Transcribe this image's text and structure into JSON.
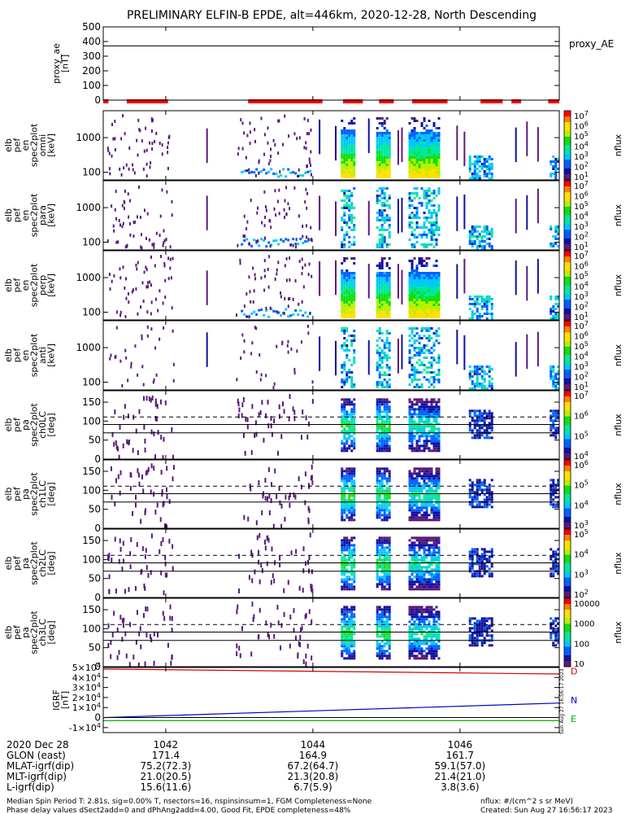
{
  "title": "PRELIMINARY ELFIN-B EPDE, alt=446km, 2020-12-28, North Descending",
  "colors": {
    "background": "#ffffff",
    "axis": "#000000",
    "flag_bar": "#ee0000",
    "grf_d": "#d40000",
    "grf_n": "#0000cc",
    "grf_e": "#00aa00",
    "colormap": [
      "#5a1a7a",
      "#1010a0",
      "#0060ff",
      "#00c8ff",
      "#00e8a0",
      "#10e010",
      "#b8f000",
      "#ffe000",
      "#ff8000",
      "#ff0000"
    ]
  },
  "x_axis": {
    "ticks": [
      {
        "value": 1042,
        "label": "1042"
      },
      {
        "value": 1044,
        "label": "1044"
      },
      {
        "value": 1046,
        "label": "1046"
      }
    ],
    "range": [
      1041.15,
      1047.35
    ]
  },
  "panels": [
    {
      "id": "proxy_ae",
      "ylabel": [
        "proxy_ae",
        "[nT]"
      ],
      "right_label": "proxy_AE",
      "ylim": [
        0,
        500
      ],
      "yticks": [
        {
          "value": 0,
          "label": "0"
        },
        {
          "value": 100,
          "label": "100"
        },
        {
          "value": 200,
          "label": "200"
        },
        {
          "value": 300,
          "label": "300"
        },
        {
          "value": 400,
          "label": "400"
        },
        {
          "value": 500,
          "label": "500"
        }
      ],
      "line_value": 370
    },
    {
      "id": "en_omni",
      "ylabel": [
        "elb",
        "pef",
        "en",
        "spec2plot",
        "omni",
        "[keV]"
      ],
      "scale": "log",
      "ylim": [
        60,
        6000
      ],
      "yticks": [
        {
          "value": 100,
          "label": "100"
        },
        {
          "value": 1000,
          "label": "1000"
        }
      ],
      "colorbar": {
        "unit": "nflux",
        "labels": [
          "10^7",
          "10^6",
          "10^5",
          "10^4",
          "10^3",
          "10^2",
          "10^1"
        ]
      }
    },
    {
      "id": "en_para",
      "ylabel": [
        "elb",
        "pef",
        "en",
        "spec2plot",
        "para",
        "[keV]"
      ],
      "scale": "log",
      "ylim": [
        60,
        6000
      ],
      "yticks": [
        {
          "value": 100,
          "label": "100"
        },
        {
          "value": 1000,
          "label": "1000"
        }
      ],
      "colorbar": {
        "unit": "nflux",
        "labels": [
          "10^7",
          "10^6",
          "10^5",
          "10^4",
          "10^3",
          "10^2",
          "10^1"
        ]
      }
    },
    {
      "id": "en_perp",
      "ylabel": [
        "elb",
        "pef",
        "en",
        "spec2plot",
        "perp",
        "[keV]"
      ],
      "scale": "log",
      "ylim": [
        60,
        6000
      ],
      "yticks": [
        {
          "value": 100,
          "label": "100"
        },
        {
          "value": 1000,
          "label": "1000"
        }
      ],
      "colorbar": {
        "unit": "nflux",
        "labels": [
          "10^7",
          "10^6",
          "10^5",
          "10^4",
          "10^3",
          "10^2",
          "10^1"
        ]
      }
    },
    {
      "id": "en_anti",
      "ylabel": [
        "elb",
        "pef",
        "en",
        "spec2plot",
        "anti",
        "[keV]"
      ],
      "scale": "log",
      "ylim": [
        60,
        6000
      ],
      "yticks": [
        {
          "value": 100,
          "label": "100"
        },
        {
          "value": 1000,
          "label": "1000"
        }
      ],
      "colorbar": {
        "unit": "nflux",
        "labels": [
          "10^7",
          "10^6",
          "10^5",
          "10^4",
          "10^3",
          "10^2",
          "10^1"
        ]
      }
    },
    {
      "id": "pa_ch0",
      "ylabel": [
        "elb",
        "pef",
        "pa",
        "spec2plot",
        "ch0LC",
        "[deg]"
      ],
      "ylim": [
        0,
        180
      ],
      "yticks": [
        {
          "value": 0,
          "label": "0"
        },
        {
          "value": 50,
          "label": "50"
        },
        {
          "value": 100,
          "label": "100"
        },
        {
          "value": 150,
          "label": "150"
        }
      ],
      "solid_lines": [
        69,
        91
      ],
      "dashed_lines": [
        111
      ],
      "colorbar": {
        "unit": "nflux",
        "labels": [
          "10^7",
          "10^6",
          "10^5",
          "10^4"
        ]
      }
    },
    {
      "id": "pa_ch1",
      "ylabel": [
        "elb",
        "pef",
        "pa",
        "spec2plot",
        "ch1LC",
        "[deg]"
      ],
      "ylim": [
        0,
        180
      ],
      "yticks": [
        {
          "value": 0,
          "label": "0"
        },
        {
          "value": 50,
          "label": "50"
        },
        {
          "value": 100,
          "label": "100"
        },
        {
          "value": 150,
          "label": "150"
        }
      ],
      "solid_lines": [
        69,
        91
      ],
      "dashed_lines": [
        111
      ],
      "colorbar": {
        "unit": "nflux",
        "labels": [
          "10^6",
          "10^5",
          "10^4",
          "10^3"
        ]
      }
    },
    {
      "id": "pa_ch2",
      "ylabel": [
        "elb",
        "pef",
        "pa",
        "spec2plot",
        "ch2LC",
        "[deg]"
      ],
      "ylim": [
        0,
        180
      ],
      "yticks": [
        {
          "value": 0,
          "label": "0"
        },
        {
          "value": 50,
          "label": "50"
        },
        {
          "value": 100,
          "label": "100"
        },
        {
          "value": 150,
          "label": "150"
        }
      ],
      "solid_lines": [
        69,
        91
      ],
      "dashed_lines": [
        111
      ],
      "colorbar": {
        "unit": "nflux",
        "labels": [
          "10^5",
          "10^4",
          "10^3",
          "10^2"
        ]
      }
    },
    {
      "id": "pa_ch3",
      "ylabel": [
        "elb",
        "pef",
        "pa",
        "spec2plot",
        "ch3LC",
        "[deg]"
      ],
      "ylim": [
        0,
        180
      ],
      "yticks": [
        {
          "value": 0,
          "label": "0"
        },
        {
          "value": 50,
          "label": "50"
        },
        {
          "value": 100,
          "label": "100"
        },
        {
          "value": 150,
          "label": "150"
        }
      ],
      "solid_lines": [
        69,
        91
      ],
      "dashed_lines": [
        111
      ],
      "colorbar": {
        "unit": "nflux",
        "labels": [
          "10000",
          "1000",
          "100",
          "10"
        ]
      }
    },
    {
      "id": "igrf",
      "ylabel": [
        "IGRF",
        "[nT]"
      ],
      "ylim": [
        -15000,
        50000
      ],
      "yticks": [
        {
          "value": -10000,
          "label": "-1×10^4"
        },
        {
          "value": 0,
          "label": "0"
        },
        {
          "value": 10000,
          "label": "1×10^4"
        },
        {
          "value": 20000,
          "label": "2×10^4"
        },
        {
          "value": 30000,
          "label": "3×10^4"
        },
        {
          "value": 40000,
          "label": "4×10^4"
        },
        {
          "value": 50000,
          "label": "5×10^4"
        }
      ],
      "side_labels": [
        {
          "label": "D",
          "color": "#d40000",
          "value": 46500
        },
        {
          "label": "N",
          "color": "#0000cc",
          "value": 17500
        },
        {
          "label": "E",
          "color": "#00aa00",
          "value": -1000
        }
      ],
      "stamp": "Sun Aug 27 16:56:17 2023"
    }
  ],
  "flag_segments": [
    [
      1041.15,
      1041.22
    ],
    [
      1041.47,
      1042.03
    ],
    [
      1043.12,
      1044.13
    ],
    [
      1044.41,
      1044.68
    ],
    [
      1044.9,
      1045.1
    ],
    [
      1045.35,
      1045.83
    ],
    [
      1046.28,
      1046.58
    ],
    [
      1046.7,
      1046.83
    ],
    [
      1047.2,
      1047.35
    ]
  ],
  "chart_data": [
    {
      "type": "line",
      "title": "PRELIMINARY ELFIN-B EPDE, alt=446km, 2020-12-28, North Descending",
      "ylabel": "proxy_ae [nT]",
      "legend": "proxy_AE",
      "x": [
        1041.15,
        1047.35
      ],
      "series": [
        {
          "name": "proxy_AE",
          "values": [
            370,
            370
          ]
        }
      ],
      "ylim": [
        0,
        500
      ]
    },
    {
      "type": "heatmap",
      "ylabel": "elb pef en spec2plot omni [keV]",
      "zlabel": "nflux",
      "zrange": [
        "10^1",
        "10^7"
      ],
      "active_intervals": [
        [
          1041.2,
          1042.0
        ],
        [
          1043.0,
          1044.0
        ],
        [
          1044.35,
          1044.55
        ],
        [
          1044.85,
          1045.05
        ],
        [
          1045.3,
          1045.7
        ],
        [
          1046.15,
          1046.4
        ],
        [
          1047.2,
          1047.35
        ]
      ]
    },
    {
      "type": "heatmap",
      "ylabel": "elb pef en spec2plot para [keV]",
      "zlabel": "nflux",
      "zrange": [
        "10^1",
        "10^7"
      ]
    },
    {
      "type": "heatmap",
      "ylabel": "elb pef en spec2plot perp [keV]",
      "zlabel": "nflux",
      "zrange": [
        "10^1",
        "10^7"
      ]
    },
    {
      "type": "heatmap",
      "ylabel": "elb pef en spec2plot anti [keV]",
      "zlabel": "nflux",
      "zrange": [
        "10^1",
        "10^7"
      ]
    },
    {
      "type": "heatmap",
      "ylabel": "elb pef pa spec2plot ch0LC [deg]",
      "zlabel": "nflux",
      "zrange": [
        "10^4",
        "10^7"
      ]
    },
    {
      "type": "heatmap",
      "ylabel": "elb pef pa spec2plot ch1LC [deg]",
      "zlabel": "nflux",
      "zrange": [
        "10^3",
        "10^6"
      ]
    },
    {
      "type": "heatmap",
      "ylabel": "elb pef pa spec2plot ch2LC [deg]",
      "zlabel": "nflux",
      "zrange": [
        "10^2",
        "10^5"
      ]
    },
    {
      "type": "heatmap",
      "ylabel": "elb pef pa spec2plot ch3LC [deg]",
      "zlabel": "nflux",
      "zrange": [
        "10",
        "10000"
      ]
    },
    {
      "type": "line",
      "ylabel": "IGRF [nT]",
      "x": [
        1041.15,
        1047.35
      ],
      "series": [
        {
          "name": "D",
          "values": [
            48500,
            43500
          ]
        },
        {
          "name": "N",
          "values": [
            0,
            14500
          ]
        },
        {
          "name": "E",
          "values": [
            -3000,
            -3000
          ]
        }
      ],
      "ylim": [
        -15000,
        50000
      ]
    }
  ],
  "ephemeris": {
    "rows": [
      {
        "label": "2020 Dec 28",
        "values": [
          "1042",
          "1044",
          "1046"
        ]
      },
      {
        "label": "GLON (east)",
        "values": [
          "171.4",
          "164.9",
          "161.7"
        ]
      },
      {
        "label": "MLAT-igrf(dip)",
        "values": [
          "75.2(72.3)",
          "67.2(64.7)",
          "59.1(57.0)"
        ]
      },
      {
        "label": "MLT-igrf(dip)",
        "values": [
          "21.0(20.5)",
          "21.3(20.8)",
          "21.4(21.0)"
        ]
      },
      {
        "label": "L-igrf(dip)",
        "values": [
          "15.6(11.6)",
          "6.7(5.9)",
          "3.8(3.6)"
        ]
      }
    ]
  },
  "footer": {
    "line1": "Median Spin Period T: 2.81s, sig=0.00% T, nsectors=16, nspinsinsum=1, FGM Completeness=None",
    "line2": "Phase delay values dSect2add=0 and dPhAng2add=4.00, Good Fit, EPDE completeness=48%",
    "units": "nflux: #/(cm^2 s sr MeV)",
    "created": "Created: Sun Aug 27 16:56:17 2023"
  }
}
